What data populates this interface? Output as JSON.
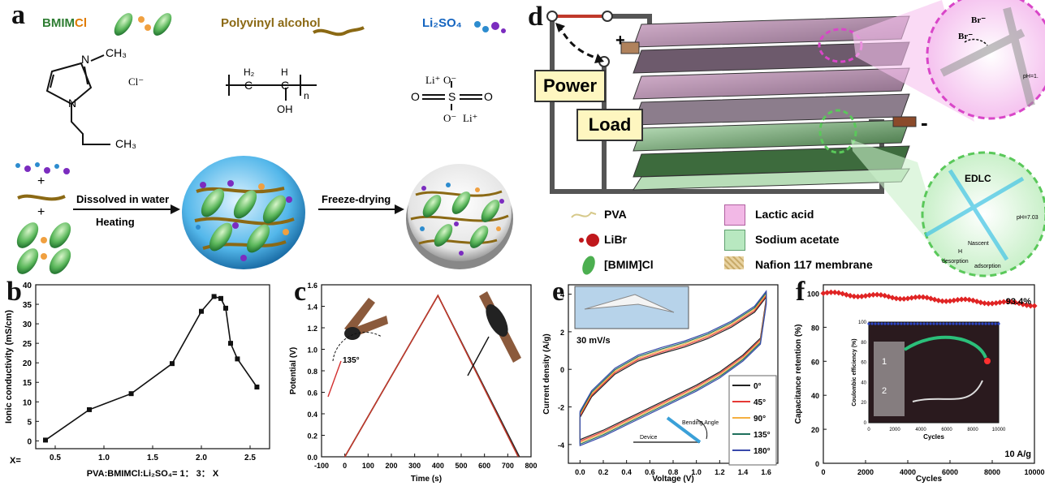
{
  "labels": {
    "a": "a",
    "b": "b",
    "c": "c",
    "d": "d",
    "e": "e",
    "f": "f"
  },
  "panel_a": {
    "bmim_prefix": "BMIM",
    "bmim_suffix": "Cl",
    "pva": "Polyvinyl alcohol",
    "li2so4": "Li₂SO₄",
    "ch3_top": "CH₃",
    "nplus": "N",
    "n": "N",
    "cl_minus": "Cl⁻",
    "ch3_bottom": "CH₃",
    "h2": "H₂",
    "h": "H",
    "c1": "C",
    "c2": "C",
    "oh": "OH",
    "n_sub": "n",
    "li_top": "Li⁺",
    "li_bottom": "Li⁺",
    "o_minus_top": "O⁻",
    "o_minus_bottom": "O⁻",
    "s": "S",
    "o_left": "O",
    "o_right": "O",
    "step1_line1": "Dissolved in water",
    "step1_line2": "Heating",
    "step2": "Freeze-drying",
    "plus1": "+",
    "plus2": "+"
  },
  "panel_d": {
    "power": "Power",
    "load": "Load",
    "plus": "+",
    "minus": "-",
    "br_minus1": "Br⁻",
    "br_minus2": "Br⁻",
    "ph1": "pH=1.",
    "edlc": "EDLC",
    "ph2": "pH=7.03",
    "nascent": "Nascent",
    "h": "H",
    "desorption": "desorption",
    "adsorption": "adsorption",
    "legend": [
      {
        "label": "PVA",
        "swatch": "#d6c98a"
      },
      {
        "label": "Lactic acid",
        "swatch": "#f2b8e6"
      },
      {
        "label": "LiBr",
        "swatch": "#c0181c"
      },
      {
        "label": "Sodium acetate",
        "swatch": "#b8e8c0"
      },
      {
        "label": "[BMIM]Cl",
        "swatch": "#4caf50"
      },
      {
        "label": "Nafion 117 membrane",
        "swatch": "#e8d2a0"
      }
    ]
  },
  "panel_e_text": {
    "scan_rate": "30 mV/s",
    "bending_angle": "Bending Angle",
    "device": "Device"
  },
  "panel_f_text": {
    "retention_label": "93.4%",
    "current_label": "10 A/g",
    "cell1": "1",
    "cell2": "2"
  },
  "chart_data": [
    {
      "id": "b",
      "type": "scatter",
      "xlabel": "PVA:BMIMCl:Li₂SO₄= 1： 3： X",
      "xprefix": "X=",
      "ylabel": "Ionic conductivity (mS/cm)",
      "xlim": [
        0.3,
        2.7
      ],
      "ylim": [
        -2,
        40
      ],
      "xticks": [
        0.5,
        1.0,
        1.5,
        2.0,
        2.5
      ],
      "yticks": [
        0,
        5,
        10,
        15,
        20,
        25,
        30,
        35,
        40
      ],
      "x": [
        0.4,
        0.85,
        1.28,
        1.7,
        2.0,
        2.13,
        2.2,
        2.25,
        2.3,
        2.37,
        2.57
      ],
      "y": [
        0.2,
        8,
        12.1,
        19.8,
        33.2,
        37,
        36.5,
        34,
        25,
        21,
        13.8
      ]
    },
    {
      "id": "c",
      "type": "line",
      "xlabel": "Time (s)",
      "ylabel": "Potential (V)",
      "xlim": [
        -100,
        800
      ],
      "ylim": [
        0,
        1.6
      ],
      "xticks": [
        -100,
        0,
        100,
        200,
        300,
        400,
        500,
        600,
        700,
        800
      ],
      "yticks": [
        0.0,
        0.2,
        0.4,
        0.6,
        0.8,
        1.0,
        1.2,
        1.4,
        1.6
      ],
      "angle_label": "135°",
      "series": [
        {
          "x": [
            0,
            400,
            750
          ],
          "y": [
            0,
            1.5,
            0
          ],
          "color": "#222222"
        },
        {
          "x": [
            0,
            400,
            745
          ],
          "y": [
            0,
            1.5,
            0
          ],
          "color": "#c0392b"
        }
      ]
    },
    {
      "id": "e",
      "type": "line",
      "xlabel": "Voltage (V)",
      "ylabel": "Current density (A/g)",
      "xlim": [
        -0.1,
        1.7
      ],
      "ylim": [
        -5,
        4.5
      ],
      "xticks": [
        0.0,
        0.2,
        0.4,
        0.6,
        0.8,
        1.0,
        1.2,
        1.4,
        1.6
      ],
      "yticks": [
        -4,
        -2,
        0,
        2,
        4
      ],
      "series": [
        {
          "name": "0°",
          "color": "#222222"
        },
        {
          "name": "45°",
          "color": "#e53935"
        },
        {
          "name": "90°",
          "color": "#f5b041"
        },
        {
          "name": "135°",
          "color": "#1e6f5c"
        },
        {
          "name": "180°",
          "color": "#3949ab"
        }
      ],
      "cv_upper_x": [
        0.0,
        0.1,
        0.3,
        0.5,
        0.7,
        0.9,
        1.1,
        1.3,
        1.5,
        1.6
      ],
      "cv_upper_y": [
        -2.4,
        -1.3,
        -0.1,
        0.6,
        1.0,
        1.35,
        1.8,
        2.4,
        3.2,
        4.0
      ],
      "cv_lower_x": [
        1.6,
        1.55,
        1.4,
        1.2,
        1.0,
        0.8,
        0.6,
        0.4,
        0.2,
        0.0
      ],
      "cv_lower_y": [
        3.6,
        1.5,
        0.6,
        -0.3,
        -1.0,
        -1.6,
        -2.2,
        -2.8,
        -3.4,
        -3.9
      ]
    },
    {
      "id": "f",
      "type": "scatter",
      "xlabel": "Cycles",
      "ylabel": "Capacitance retention (%)",
      "xlim": [
        0,
        10000
      ],
      "ylim": [
        0,
        105
      ],
      "xticks": [
        0,
        2000,
        4000,
        6000,
        8000,
        10000
      ],
      "yticks": [
        0,
        20,
        40,
        60,
        80,
        100
      ],
      "retention_start": 100,
      "retention_end": 93.4,
      "inset": {
        "ylabel": "Coulombic efficiency (%)",
        "xlabel": "Cycles",
        "xticks": [
          0,
          2000,
          4000,
          6000,
          8000,
          10000
        ],
        "yticks": [
          0,
          20,
          40,
          60,
          80,
          100
        ],
        "efficiency": 100
      }
    }
  ]
}
